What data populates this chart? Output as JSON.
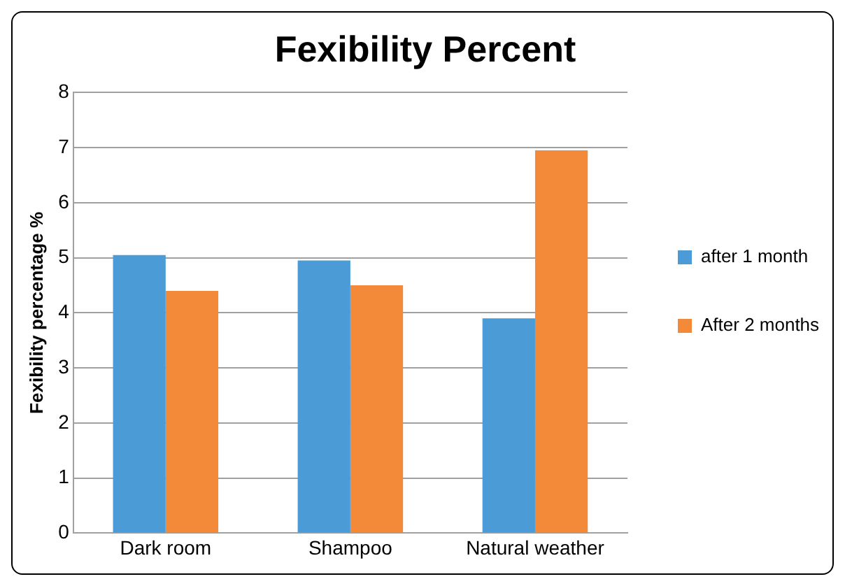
{
  "chart_data": {
    "type": "bar",
    "title": "Fexibility Percent",
    "ylabel": "Fexibility percentage %",
    "categories": [
      "Dark room",
      "Shampoo",
      "Natural weather"
    ],
    "series": [
      {
        "name": "after 1 month",
        "color": "#4a9bd6",
        "values": [
          5.05,
          4.95,
          3.9
        ]
      },
      {
        "name": "After 2 months",
        "color": "#f38a3a",
        "values": [
          4.4,
          4.5,
          6.95
        ]
      }
    ],
    "ylim": [
      0,
      8
    ],
    "yticks": [
      0,
      1,
      2,
      3,
      4,
      5,
      6,
      7,
      8
    ],
    "grid": "y",
    "legend": "right"
  }
}
